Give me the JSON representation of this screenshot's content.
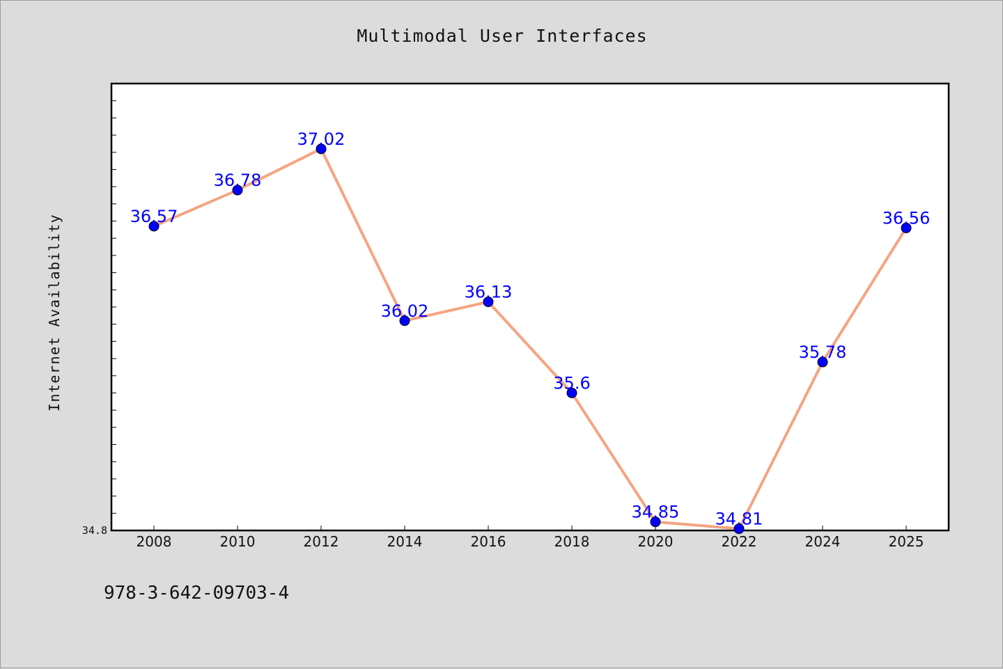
{
  "chart_data": {
    "type": "line",
    "title": "Multimodal User Interfaces",
    "ylabel": "Internet Availability",
    "xlabel": "",
    "categories": [
      "2008",
      "2010",
      "2012",
      "2014",
      "2016",
      "2018",
      "2020",
      "2022",
      "2024",
      "2025"
    ],
    "series": [
      {
        "values": [
          36.57,
          36.78,
          37.02,
          36.02,
          36.13,
          35.6,
          34.85,
          34.81,
          35.78,
          36.56
        ]
      }
    ],
    "data_labels": [
      "36.57",
      "36.78",
      "37.02",
      "36.02",
      "36.13",
      "35.6",
      "34.85",
      "34.81",
      "35.78",
      "36.56"
    ],
    "y_tick_labels": [
      "34.8"
    ],
    "ylim": [
      34.8,
      37.4
    ],
    "y_minor_step": 0.1,
    "grid": false,
    "colors": {
      "line": "#f4a582",
      "marker": "#0000ff",
      "data_label": "#0000ff",
      "plot_background": "#ffffff",
      "page_background": "#dcdcdc"
    }
  },
  "footer": {
    "text": "978-3-642-09703-4"
  }
}
